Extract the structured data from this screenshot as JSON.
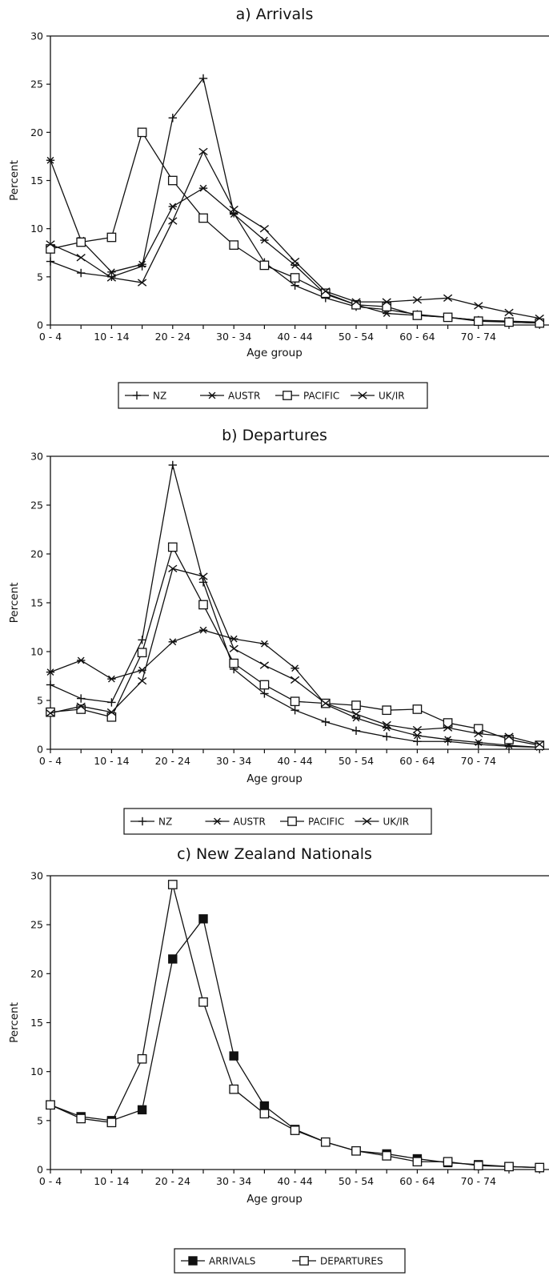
{
  "chart_data": [
    {
      "type": "line",
      "title": "a) Arrivals",
      "xlabel": "Age group",
      "ylabel": "Percent",
      "ylim": [
        0,
        30
      ],
      "yticks": [
        0,
        5,
        10,
        15,
        20,
        25,
        30
      ],
      "x_tick_labels": [
        "0 - 4",
        "10 - 14",
        "20 - 24",
        "30 - 34",
        "40 - 44",
        "50 - 54",
        "60 - 64",
        "70 - 74"
      ],
      "categories": [
        "0-4",
        "5-9",
        "10-14",
        "15-19",
        "20-24",
        "25-29",
        "30-34",
        "35-39",
        "40-44",
        "45-49",
        "50-54",
        "55-59",
        "60-64",
        "65-69",
        "70-74",
        "75-79",
        "80+"
      ],
      "series": [
        {
          "name": "NZ",
          "values": [
            6.6,
            5.4,
            5.0,
            6.1,
            21.5,
            25.6,
            11.6,
            6.5,
            4.1,
            2.8,
            1.9,
            1.6,
            1.1,
            0.8,
            0.5,
            0.4,
            0.3
          ]
        },
        {
          "name": "AUSTR",
          "values": [
            17.1,
            8.8,
            5.5,
            6.3,
            12.3,
            14.2,
            11.5,
            8.8,
            6.2,
            3.2,
            2.1,
            1.2,
            1.0,
            0.8,
            0.5,
            0.3,
            0.2
          ]
        },
        {
          "name": "PACIFIC",
          "values": [
            7.9,
            8.6,
            9.1,
            20.0,
            15.0,
            11.1,
            8.3,
            6.2,
            4.9,
            3.3,
            2.1,
            1.9,
            1.0,
            0.8,
            0.4,
            0.3,
            0.2
          ]
        },
        {
          "name": "UK/IR",
          "values": [
            8.4,
            7.0,
            4.9,
            4.4,
            10.8,
            18.0,
            12.0,
            10.0,
            6.6,
            3.5,
            2.4,
            2.4,
            2.6,
            2.8,
            2.0,
            1.3,
            0.7
          ]
        }
      ],
      "legend": [
        "NZ",
        "AUSTR",
        "PACIFIC",
        "UK/IR"
      ],
      "legend_position": "bottom",
      "grid": false
    },
    {
      "type": "line",
      "title": "b) Departures",
      "xlabel": "Age group",
      "ylabel": "Percent",
      "ylim": [
        0,
        30
      ],
      "yticks": [
        0,
        5,
        10,
        15,
        20,
        25,
        30
      ],
      "x_tick_labels": [
        "0 - 4",
        "10 - 14",
        "20 - 24",
        "30 - 34",
        "40 - 44",
        "50 - 54",
        "60 - 64",
        "70 - 74"
      ],
      "categories": [
        "0-4",
        "5-9",
        "10-14",
        "15-19",
        "20-24",
        "25-29",
        "30-34",
        "35-39",
        "40-44",
        "45-49",
        "50-54",
        "55-59",
        "60-64",
        "65-69",
        "70-74",
        "75-79",
        "80+"
      ],
      "series": [
        {
          "name": "NZ",
          "values": [
            6.6,
            5.2,
            4.8,
            11.2,
            29.1,
            17.1,
            8.2,
            5.7,
            4.0,
            2.8,
            1.9,
            1.3,
            0.8,
            0.8,
            0.5,
            0.3,
            0.2
          ]
        },
        {
          "name": "AUSTR",
          "values": [
            7.9,
            9.1,
            7.2,
            8.1,
            11.0,
            12.2,
            11.3,
            10.8,
            8.3,
            4.6,
            3.2,
            2.2,
            1.4,
            1.0,
            0.7,
            0.4,
            0.2
          ]
        },
        {
          "name": "PACIFIC",
          "values": [
            3.8,
            4.1,
            3.3,
            9.9,
            20.7,
            14.8,
            8.8,
            6.6,
            4.9,
            4.7,
            4.5,
            4.0,
            4.1,
            2.7,
            2.1,
            1.0,
            0.4
          ]
        },
        {
          "name": "UK/IR",
          "values": [
            3.7,
            4.4,
            3.8,
            7.0,
            18.5,
            17.7,
            10.3,
            8.6,
            7.1,
            4.7,
            3.6,
            2.5,
            2.0,
            2.2,
            1.6,
            1.3,
            0.5
          ]
        }
      ],
      "legend": [
        "NZ",
        "AUSTR",
        "PACIFIC",
        "UK/IR"
      ],
      "legend_position": "bottom",
      "grid": false
    },
    {
      "type": "line",
      "title": "c) New Zealand Nationals",
      "xlabel": "Age group",
      "ylabel": "Percent",
      "ylim": [
        0,
        30
      ],
      "yticks": [
        0,
        5,
        10,
        15,
        20,
        25,
        30
      ],
      "x_tick_labels": [
        "0 - 4",
        "10 - 14",
        "20 - 24",
        "30 - 34",
        "40 - 44",
        "50 - 54",
        "60 - 64",
        "70 - 74"
      ],
      "categories": [
        "0-4",
        "5-9",
        "10-14",
        "15-19",
        "20-24",
        "25-29",
        "30-34",
        "35-39",
        "40-44",
        "45-49",
        "50-54",
        "55-59",
        "60-64",
        "65-69",
        "70-74",
        "75-79",
        "80+"
      ],
      "series": [
        {
          "name": "ARRIVALS",
          "values": [
            6.6,
            5.4,
            5.0,
            6.1,
            21.5,
            25.6,
            11.6,
            6.5,
            4.1,
            2.8,
            1.9,
            1.6,
            1.1,
            0.7,
            0.5,
            0.3,
            0.2
          ]
        },
        {
          "name": "DEPARTURES",
          "values": [
            6.6,
            5.2,
            4.8,
            11.3,
            29.1,
            17.1,
            8.2,
            5.7,
            4.0,
            2.8,
            1.9,
            1.4,
            0.8,
            0.8,
            0.4,
            0.3,
            0.2
          ]
        }
      ],
      "legend": [
        "ARRIVALS",
        "DEPARTURES"
      ],
      "legend_position": "bottom",
      "grid": false
    }
  ],
  "markers": {
    "NZ": "plus",
    "AUSTR": "asterisk",
    "PACIFIC": "open-square",
    "UK/IR": "x-cross",
    "ARRIVALS": "filled-square",
    "DEPARTURES": "open-square"
  }
}
